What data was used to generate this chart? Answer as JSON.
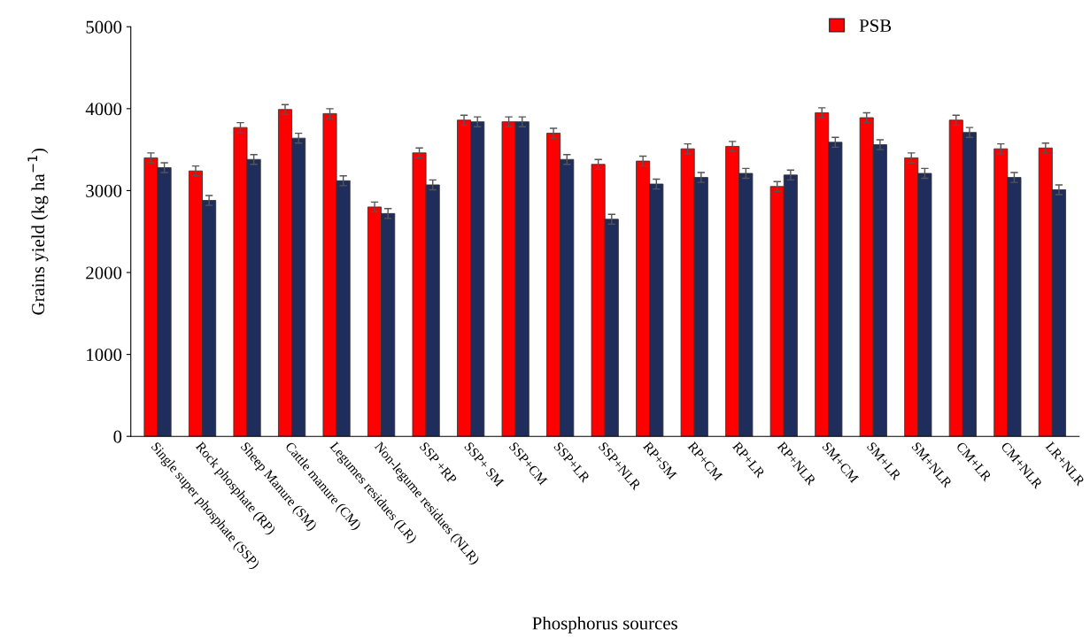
{
  "chart_data": {
    "type": "bar",
    "xlabel": "Phosphorus sources",
    "ylabel": "Grains yield (kg ha$^{−1}$)",
    "categories": [
      "Single super phosphate (SSP)",
      "Rock phosphate (RP)",
      "Sheep Manure (SM)",
      "Cattle manure (CM)",
      "Legumes residues (LR)",
      "Non-legume residues (NLR)",
      "SSP +RP",
      "SSP+ SM",
      "SSP+CM",
      "SSP+LR",
      "SSP+NLR",
      "RP+SM",
      "RP+CM",
      "RP+LR",
      "RP+NLR",
      "SM+CM",
      "SM+LR",
      "SM+NLR",
      "CM+LR",
      "CM+NLR",
      "LR+NLR"
    ],
    "series": [
      {
        "name": "PSB",
        "color": "#ff0000",
        "values": [
          3400,
          3240,
          3770,
          3990,
          3940,
          2800,
          3460,
          3860,
          3840,
          3700,
          3320,
          3360,
          3510,
          3540,
          3050,
          3950,
          3890,
          3400,
          3860,
          3510,
          3520
        ],
        "errors": [
          60,
          60,
          60,
          60,
          60,
          60,
          60,
          60,
          60,
          60,
          60,
          60,
          60,
          60,
          60,
          60,
          60,
          60,
          60,
          60,
          60
        ]
      },
      {
        "color": "#1f2d5c",
        "values": [
          3280,
          2880,
          3380,
          3640,
          3120,
          2720,
          3070,
          3840,
          3840,
          3380,
          2650,
          3080,
          3160,
          3210,
          3190,
          3590,
          3560,
          3210,
          3710,
          3160,
          3010
        ],
        "errors": [
          60,
          60,
          60,
          60,
          60,
          60,
          60,
          60,
          60,
          60,
          60,
          60,
          60,
          60,
          60,
          60,
          60,
          60,
          60,
          60,
          60
        ]
      }
    ],
    "ylim": [
      0,
      5000
    ],
    "yticks": [
      0,
      1000,
      2000,
      3000,
      4000,
      5000
    ],
    "grid": false,
    "legend": "top right"
  }
}
